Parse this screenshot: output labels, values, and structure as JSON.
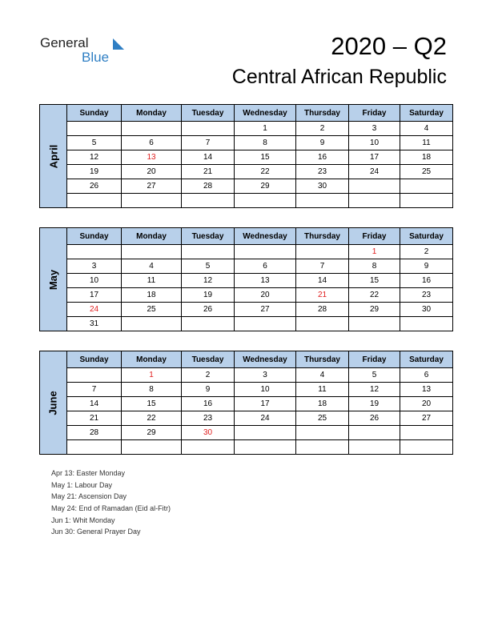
{
  "header": {
    "logo_general": "General",
    "logo_blue": "Blue",
    "title": "2020 – Q2",
    "country": "Central African Republic"
  },
  "colors": {
    "header_fill": "#b8d0ea",
    "holiday": "#e02020",
    "logo_blue": "#2f7fc4"
  },
  "weekdays": [
    "Sunday",
    "Monday",
    "Tuesday",
    "Wednesday",
    "Thursday",
    "Friday",
    "Saturday"
  ],
  "months": [
    {
      "name": "April",
      "weeks": [
        [
          "",
          "",
          "",
          "1",
          "2",
          "3",
          "4"
        ],
        [
          "5",
          "6",
          "7",
          "8",
          "9",
          "10",
          "11"
        ],
        [
          "12",
          "13",
          "14",
          "15",
          "16",
          "17",
          "18"
        ],
        [
          "19",
          "20",
          "21",
          "22",
          "23",
          "24",
          "25"
        ],
        [
          "26",
          "27",
          "28",
          "29",
          "30",
          "",
          ""
        ],
        [
          "",
          "",
          "",
          "",
          "",
          "",
          ""
        ]
      ],
      "holidays": [
        "13"
      ]
    },
    {
      "name": "May",
      "weeks": [
        [
          "",
          "",
          "",
          "",
          "",
          "1",
          "2"
        ],
        [
          "3",
          "4",
          "5",
          "6",
          "7",
          "8",
          "9"
        ],
        [
          "10",
          "11",
          "12",
          "13",
          "14",
          "15",
          "16"
        ],
        [
          "17",
          "18",
          "19",
          "20",
          "21",
          "22",
          "23"
        ],
        [
          "24",
          "25",
          "26",
          "27",
          "28",
          "29",
          "30"
        ],
        [
          "31",
          "",
          "",
          "",
          "",
          "",
          ""
        ]
      ],
      "holidays": [
        "1",
        "21",
        "24"
      ]
    },
    {
      "name": "June",
      "weeks": [
        [
          "",
          "1",
          "2",
          "3",
          "4",
          "5",
          "6"
        ],
        [
          "7",
          "8",
          "9",
          "10",
          "11",
          "12",
          "13"
        ],
        [
          "14",
          "15",
          "16",
          "17",
          "18",
          "19",
          "20"
        ],
        [
          "21",
          "22",
          "23",
          "24",
          "25",
          "26",
          "27"
        ],
        [
          "28",
          "29",
          "30",
          "",
          "",
          "",
          ""
        ],
        [
          "",
          "",
          "",
          "",
          "",
          "",
          ""
        ]
      ],
      "holidays": [
        "1",
        "30"
      ]
    }
  ],
  "holiday_notes": [
    "Apr 13: Easter Monday",
    "May 1: Labour Day",
    "May 21: Ascension Day",
    "May 24: End of Ramadan (Eid al-Fitr)",
    "Jun 1: Whit Monday",
    "Jun 30: General Prayer Day"
  ]
}
